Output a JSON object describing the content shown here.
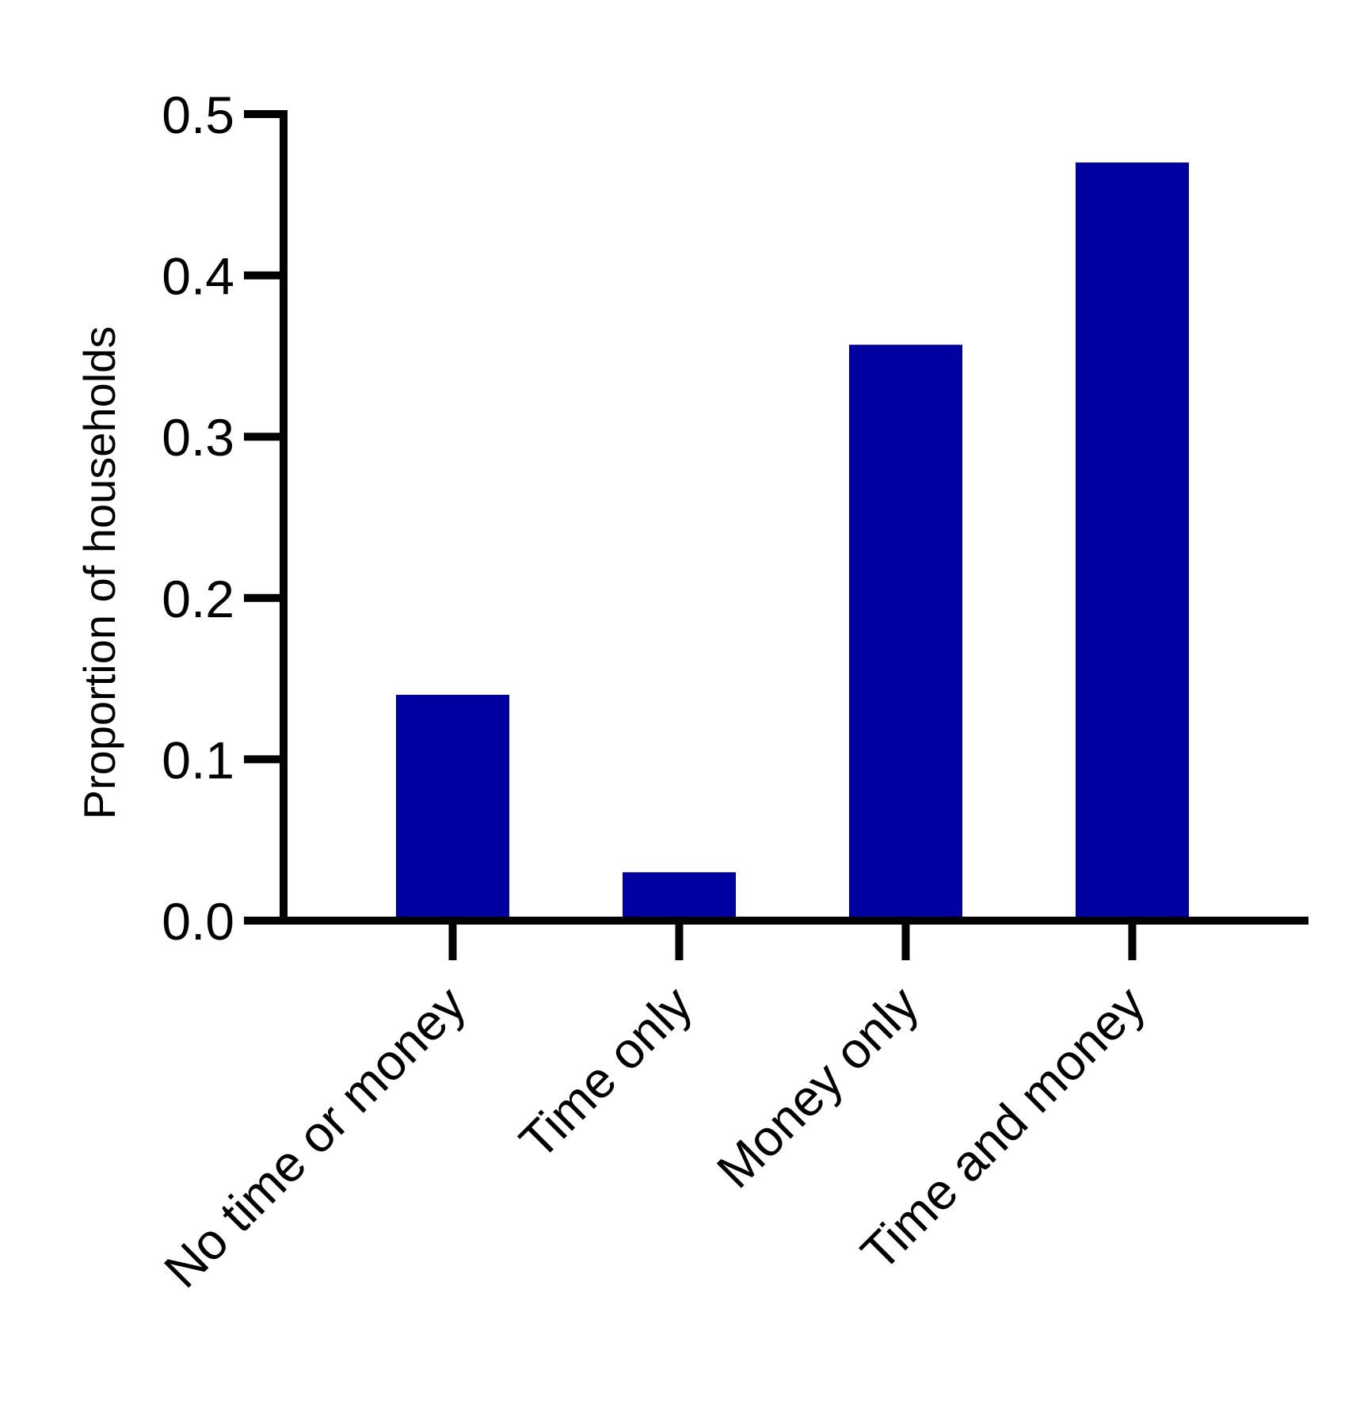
{
  "chart_data": {
    "type": "bar",
    "title": "",
    "xlabel": "",
    "ylabel": "Proportion of households",
    "categories": [
      "No time or money",
      "Time only",
      "Money only",
      "Time and money"
    ],
    "values": [
      0.14,
      0.03,
      0.357,
      0.47
    ],
    "ylim": [
      0,
      0.5
    ],
    "yticks": [
      0.0,
      0.1,
      0.2,
      0.3,
      0.4,
      0.5
    ],
    "ytick_labels": [
      "0.0",
      "0.1",
      "0.2",
      "0.3",
      "0.4",
      "0.5"
    ],
    "grid": false,
    "legend": "none",
    "colors": {
      "bar": "#0000A0",
      "axis": "#000000"
    }
  }
}
